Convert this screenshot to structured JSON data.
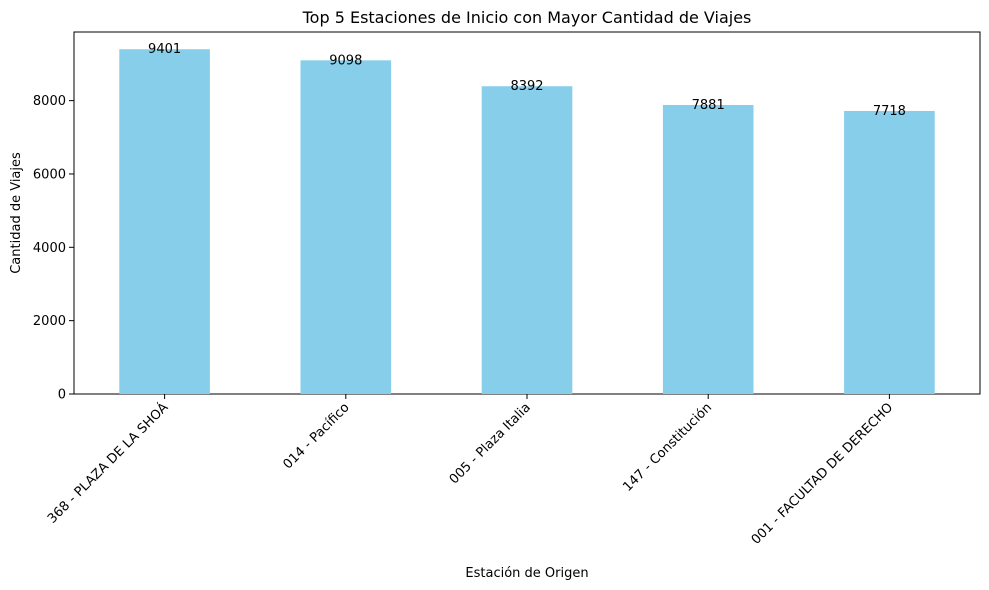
{
  "chart_data": {
    "type": "bar",
    "title": "Top 5 Estaciones de Inicio con Mayor Cantidad de Viajes",
    "xlabel": "Estación de Origen",
    "ylabel": "Cantidad de Viajes",
    "categories": [
      "368 - PLAZA DE LA SHOÁ",
      "014 - Pacífico",
      "005 - Plaza Italia",
      "147 - Constitución",
      "001 - FACULTAD DE DERECHO"
    ],
    "values": [
      9401,
      9098,
      8392,
      7881,
      7718
    ],
    "ylim": [
      0,
      9871
    ],
    "yticks": [
      0,
      2000,
      4000,
      6000,
      8000
    ],
    "bar_color": "#87ceeb",
    "grid": false,
    "legend": "none",
    "data_labels": true
  }
}
